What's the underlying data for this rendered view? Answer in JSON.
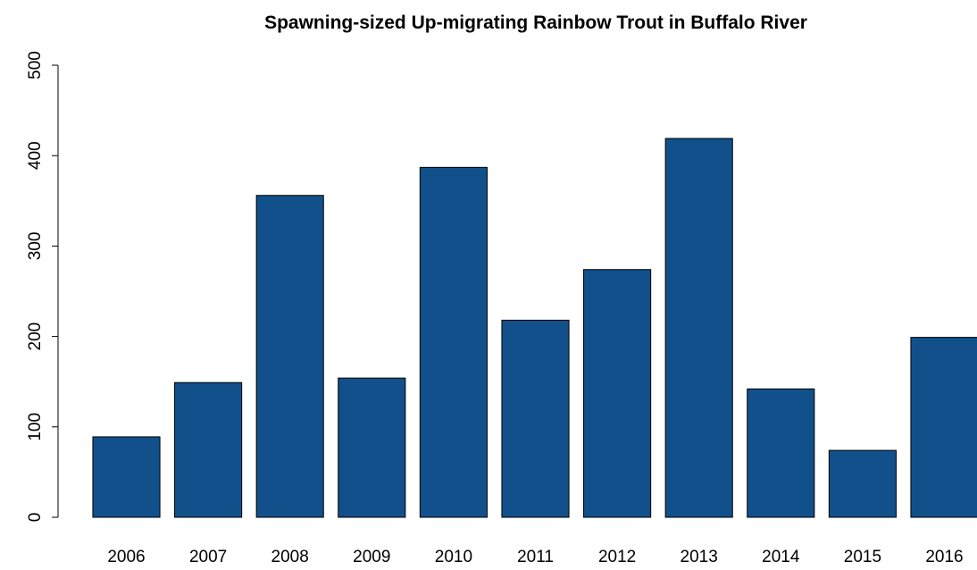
{
  "chart_data": {
    "type": "bar",
    "title": "Spawning-sized Up-migrating Rainbow Trout in Buffalo River",
    "categories": [
      "2006",
      "2007",
      "2008",
      "2009",
      "2010",
      "2011",
      "2012",
      "2013",
      "2014",
      "2015",
      "2016"
    ],
    "values": [
      89,
      149,
      356,
      154,
      387,
      218,
      274,
      419,
      142,
      74,
      199
    ],
    "color": "#11508a",
    "ylim": [
      0,
      500
    ],
    "yticks": [
      0,
      100,
      200,
      300,
      400,
      500
    ]
  }
}
